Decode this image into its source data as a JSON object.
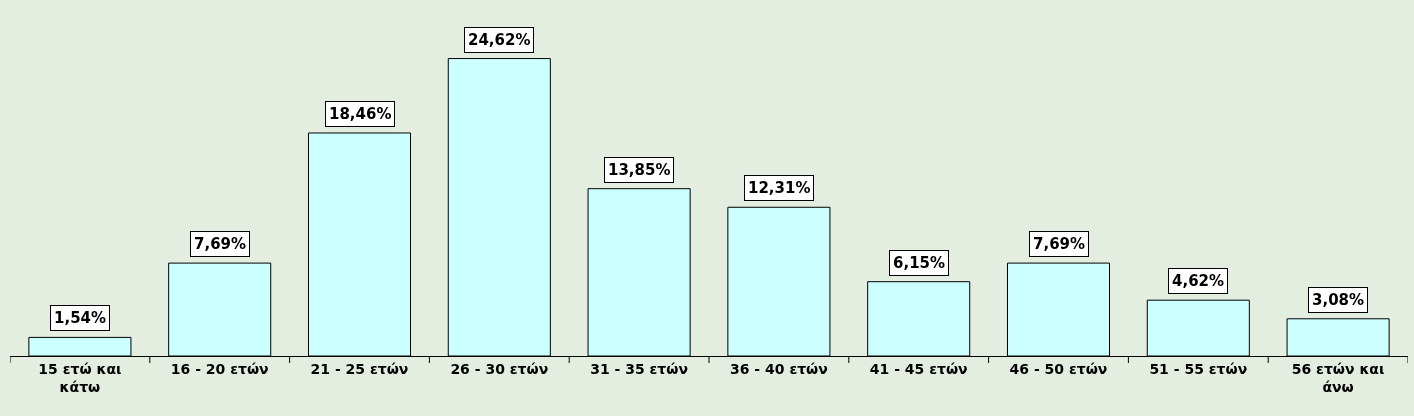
{
  "chart_data": {
    "type": "bar",
    "categories": [
      "15 ετώ και κάτω",
      "16 - 20 ετών",
      "21 - 25 ετών",
      "26 - 30 ετών",
      "31 - 35 ετών",
      "36 - 40 ετών",
      "41 - 45 ετών",
      "46 - 50 ετών",
      "51 - 55 ετών",
      "56 ετών και άνω"
    ],
    "values": [
      1.54,
      7.69,
      18.46,
      24.62,
      13.85,
      12.31,
      6.15,
      7.69,
      4.62,
      3.08
    ],
    "value_labels": [
      "1,54%",
      "7,69%",
      "18,46%",
      "24,62%",
      "13,85%",
      "12,31%",
      "6,15%",
      "7,69%",
      "4,62%",
      "3,08%"
    ],
    "color": "#ccffff",
    "legend": false
  }
}
